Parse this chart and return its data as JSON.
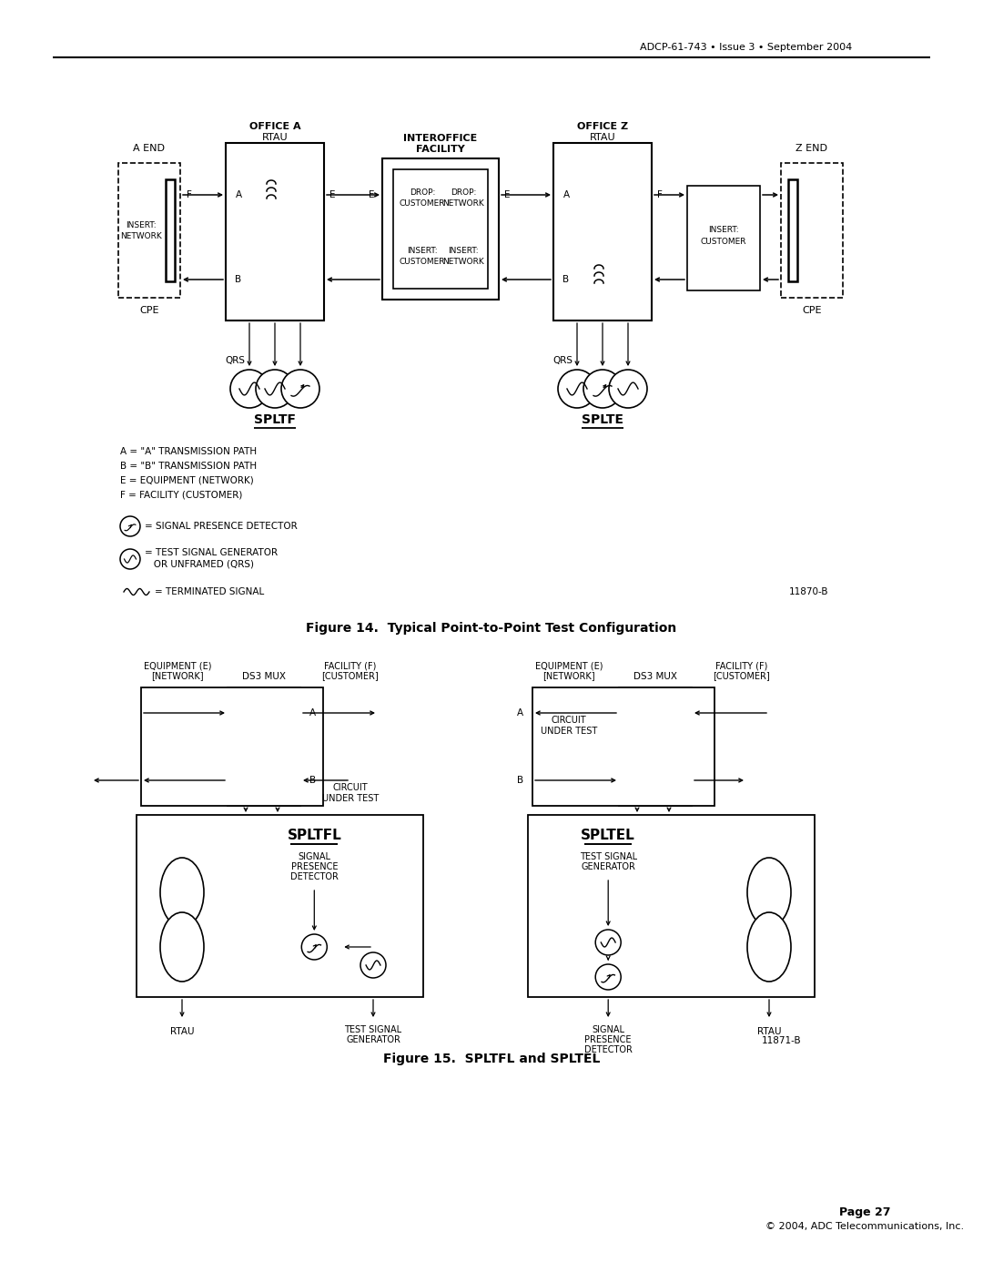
{
  "header_text": "ADCP-61-743 • Issue 3 • September 2004",
  "footer_page": "Page 27",
  "footer_copy": "© 2004, ADC Telecommunications, Inc.",
  "fig14_caption": "Figure 14.  Typical Point-to-Point Test Configuration",
  "fig15_caption": "Figure 15.  SPLTFL and SPLTEL",
  "bg_color": "#ffffff",
  "line_color": "#000000",
  "legend_abef": [
    "A = \"A\" TRANSMISSION PATH",
    "B = \"B\" TRANSMISSION PATH",
    "E = EQUIPMENT (NETWORK)",
    "F = FACILITY (CUSTOMER)"
  ],
  "fig14_id": "11870-B",
  "fig15_id": "11871-B"
}
